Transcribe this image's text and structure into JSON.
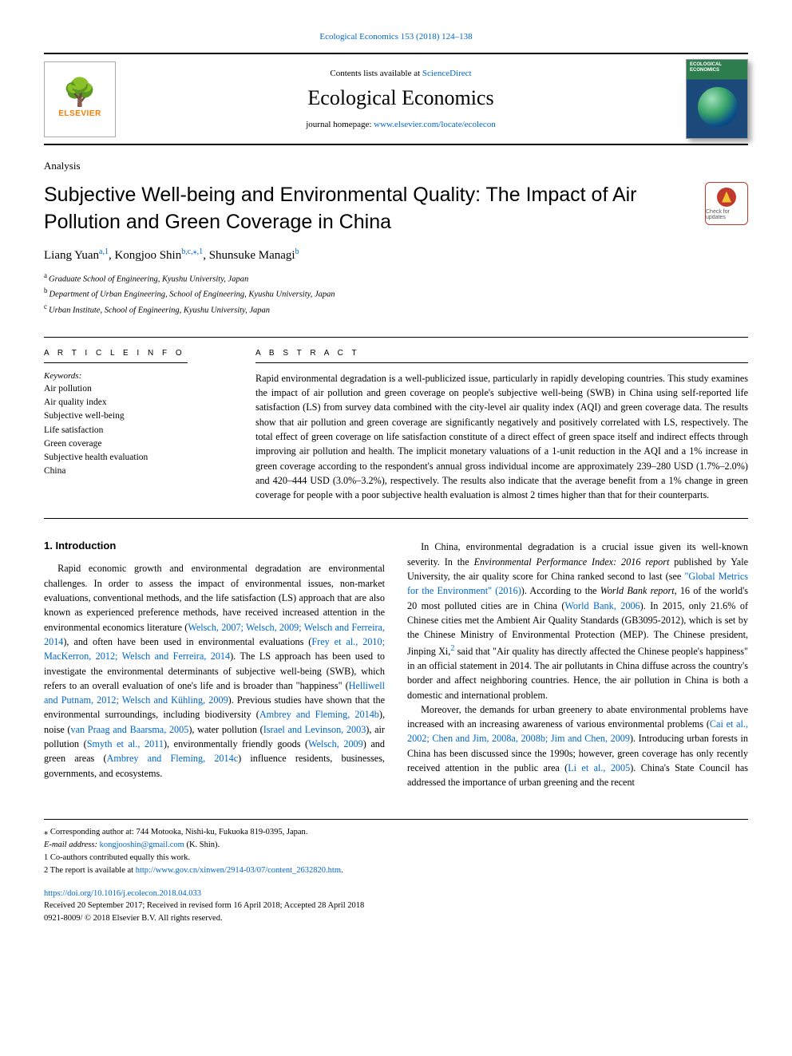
{
  "top_citation": "Ecological Economics 153 (2018) 124–138",
  "header": {
    "contents_prefix": "Contents lists available at ",
    "contents_link": "ScienceDirect",
    "journal_name": "Ecological Economics",
    "homepage_prefix": "journal homepage: ",
    "homepage_url": "www.elsevier.com/locate/ecolecon",
    "elsevier_brand": "ELSEVIER",
    "cover_title": "ECOLOGICAL ECONOMICS"
  },
  "article_type": "Analysis",
  "title": "Subjective Well-being and Environmental Quality: The Impact of Air Pollution and Green Coverage in China",
  "check_updates_label": "Check for updates",
  "authors_html": {
    "a1_name": "Liang Yuan",
    "a1_sup": "a,1",
    "a2_name": "Kongjoo Shin",
    "a2_sup": "b,c,⁎,1",
    "a3_name": "Shunsuke Managi",
    "a3_sup": "b"
  },
  "affiliations": {
    "a": "Graduate School of Engineering, Kyushu University, Japan",
    "b": "Department of Urban Engineering, School of Engineering, Kyushu University, Japan",
    "c": "Urban Institute, School of Engineering, Kyushu University, Japan"
  },
  "article_info_label": "A R T I C L E  I N F O",
  "abstract_label": "A B S T R A C T",
  "keywords_label": "Keywords:",
  "keywords": [
    "Air pollution",
    "Air quality index",
    "Subjective well-being",
    "Life satisfaction",
    "Green coverage",
    "Subjective health evaluation",
    "China"
  ],
  "abstract": "Rapid environmental degradation is a well-publicized issue, particularly in rapidly developing countries. This study examines the impact of air pollution and green coverage on people's subjective well-being (SWB) in China using self-reported life satisfaction (LS) from survey data combined with the city-level air quality index (AQI) and green coverage data. The results show that air pollution and green coverage are significantly negatively and positively correlated with LS, respectively. The total effect of green coverage on life satisfaction constitute of a direct effect of green space itself and indirect effects through improving air pollution and health. The implicit monetary valuations of a 1-unit reduction in the AQI and a 1% increase in green coverage according to the respondent's annual gross individual income are approximately 239–280 USD (1.7%–2.0%) and 420–444 USD (3.0%–3.2%), respectively. The results also indicate that the average benefit from a 1% change in green coverage for people with a poor subjective health evaluation is almost 2 times higher than that for their counterparts.",
  "intro_heading": "1. Introduction",
  "intro_p1_a": "Rapid economic growth and environmental degradation are environmental challenges. In order to assess the impact of environmental issues, non-market evaluations, conventional methods, and the life satisfaction (LS) approach that are also known as experienced preference methods, have received increased attention in the environmental economics literature (",
  "intro_p1_refs1": "Welsch, 2007; Welsch, 2009; Welsch and Ferreira, 2014",
  "intro_p1_b": "), and often have been used in environmental evaluations (",
  "intro_p1_refs2": "Frey et al., 2010; MacKerron, 2012; Welsch and Ferreira, 2014",
  "intro_p1_c": "). The LS approach has been used to investigate the environmental determinants of subjective well-being (SWB), which refers to an overall evaluation of one's life and is broader than \"happiness\" (",
  "intro_p1_refs3": "Helliwell and Putnam, 2012; Welsch and Kühling, 2009",
  "intro_p1_d": "). Previous studies have shown that the environmental surroundings, including biodiversity (",
  "intro_p1_refs4": "Ambrey and Fleming, 2014b",
  "intro_p1_e": "), noise (",
  "intro_p1_refs5": "van Praag and Baarsma, 2005",
  "intro_p1_f": "), water pollution (",
  "intro_p1_refs6": "Israel and Levinson, 2003",
  "intro_p1_g": "), air pollution (",
  "intro_p1_refs7": "Smyth et al., 2011",
  "intro_p1_h": "), environmentally friendly goods (",
  "intro_p1_refs8": "Welsch, 2009",
  "intro_p1_i": ") and green areas (",
  "intro_p1_refs9": "Ambrey and Fleming, 2014c",
  "intro_p1_j": ") influence residents, businesses, governments, and ecosystems.",
  "intro_p2_a": "In China, environmental degradation is a crucial issue given its well-known severity. In the ",
  "intro_p2_em1": "Environmental Performance Index: 2016 report",
  "intro_p2_b": " published by Yale University, the air quality score for China ranked second to last (see ",
  "intro_p2_refs1": "\"Global Metrics for the Environment\" (2016)",
  "intro_p2_c": "). According to the ",
  "intro_p2_em2": "World Bank report",
  "intro_p2_d": ", 16 of the world's 20 most polluted cities are in China (",
  "intro_p2_refs2": "World Bank, 2006",
  "intro_p2_e": "). In 2015, only 21.6% of Chinese cities met the Ambient Air Quality Standards (GB3095-2012), which is set by the Chinese Ministry of Environmental Protection (MEP). The Chinese president, Jinping Xi,",
  "intro_p2_sup": "2",
  "intro_p2_f": " said that \"Air quality has directly affected the Chinese people's happiness\" in an official statement in 2014. The air pollutants in China diffuse across the country's border and affect neighboring countries. Hence, the air pollution in China is both a domestic and international problem.",
  "intro_p3_a": "Moreover, the demands for urban greenery to abate environmental problems have increased with an increasing awareness of various environmental problems (",
  "intro_p3_refs1": "Cai et al., 2002; Chen and Jim, 2008a, 2008b; Jim and Chen, 2009",
  "intro_p3_b": "). Introducing urban forests in China has been discussed since the 1990s; however, green coverage has only recently received attention in the public area (",
  "intro_p3_refs2": "Li et al., 2005",
  "intro_p3_c": "). China's State Council has addressed the importance of urban greening and the recent",
  "footnotes": {
    "corr": "⁎ Corresponding author at: 744 Motooka, Nishi-ku, Fukuoka 819-0395, Japan.",
    "email_label": "E-mail address:",
    "email": "kongjooshin@gmail.com",
    "email_suffix": " (K. Shin).",
    "f1": "1 Co-authors contributed equally this work.",
    "f2_a": "2 The report is available at ",
    "f2_url": "http://www.gov.cn/xinwen/2914-03/07/content_2632820.htm",
    "f2_b": "."
  },
  "doi": "https://doi.org/10.1016/j.ecolecon.2018.04.033",
  "history": "Received 20 September 2017; Received in revised form 16 April 2018; Accepted 28 April 2018",
  "copyright": "0921-8009/ © 2018 Elsevier B.V. All rights reserved.",
  "colors": {
    "link": "#0066cc",
    "elsevier_orange": "#ff7a00",
    "rule": "#000000"
  }
}
